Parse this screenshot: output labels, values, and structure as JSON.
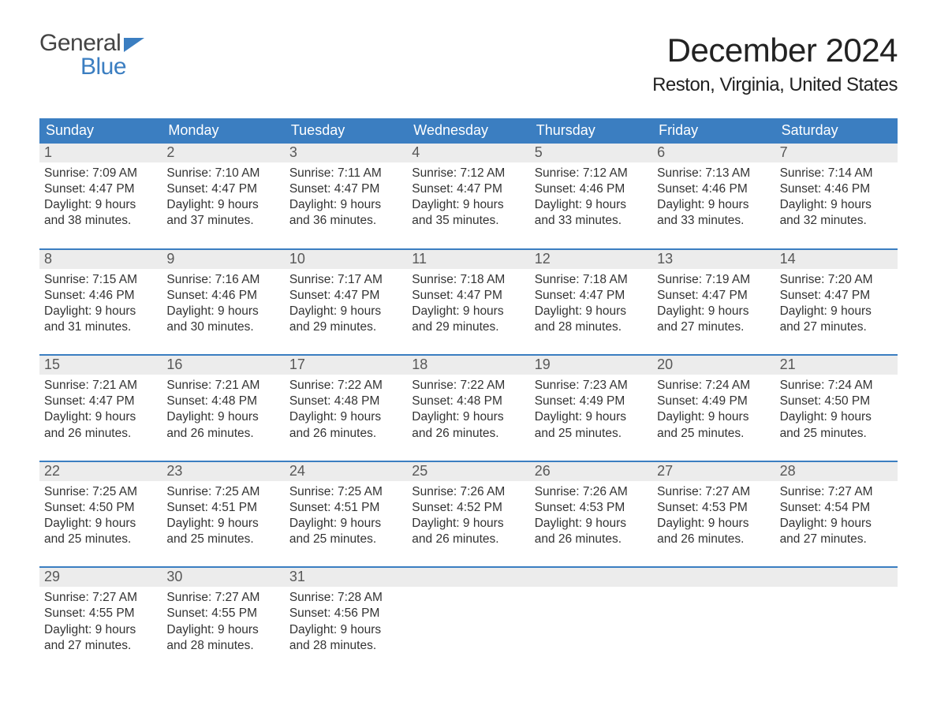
{
  "brand": {
    "word1": "General",
    "word2": "Blue"
  },
  "title": "December 2024",
  "location": "Reston, Virginia, United States",
  "colors": {
    "accent": "#3b7ec1",
    "date_bg": "#ececec",
    "background": "#ffffff",
    "text": "#333333"
  },
  "weekdays": [
    "Sunday",
    "Monday",
    "Tuesday",
    "Wednesday",
    "Thursday",
    "Friday",
    "Saturday"
  ],
  "weeks": [
    [
      {
        "date": "1",
        "sunrise": "Sunrise: 7:09 AM",
        "sunset": "Sunset: 4:47 PM",
        "daylight1": "Daylight: 9 hours",
        "daylight2": "and 38 minutes."
      },
      {
        "date": "2",
        "sunrise": "Sunrise: 7:10 AM",
        "sunset": "Sunset: 4:47 PM",
        "daylight1": "Daylight: 9 hours",
        "daylight2": "and 37 minutes."
      },
      {
        "date": "3",
        "sunrise": "Sunrise: 7:11 AM",
        "sunset": "Sunset: 4:47 PM",
        "daylight1": "Daylight: 9 hours",
        "daylight2": "and 36 minutes."
      },
      {
        "date": "4",
        "sunrise": "Sunrise: 7:12 AM",
        "sunset": "Sunset: 4:47 PM",
        "daylight1": "Daylight: 9 hours",
        "daylight2": "and 35 minutes."
      },
      {
        "date": "5",
        "sunrise": "Sunrise: 7:12 AM",
        "sunset": "Sunset: 4:46 PM",
        "daylight1": "Daylight: 9 hours",
        "daylight2": "and 33 minutes."
      },
      {
        "date": "6",
        "sunrise": "Sunrise: 7:13 AM",
        "sunset": "Sunset: 4:46 PM",
        "daylight1": "Daylight: 9 hours",
        "daylight2": "and 33 minutes."
      },
      {
        "date": "7",
        "sunrise": "Sunrise: 7:14 AM",
        "sunset": "Sunset: 4:46 PM",
        "daylight1": "Daylight: 9 hours",
        "daylight2": "and 32 minutes."
      }
    ],
    [
      {
        "date": "8",
        "sunrise": "Sunrise: 7:15 AM",
        "sunset": "Sunset: 4:46 PM",
        "daylight1": "Daylight: 9 hours",
        "daylight2": "and 31 minutes."
      },
      {
        "date": "9",
        "sunrise": "Sunrise: 7:16 AM",
        "sunset": "Sunset: 4:46 PM",
        "daylight1": "Daylight: 9 hours",
        "daylight2": "and 30 minutes."
      },
      {
        "date": "10",
        "sunrise": "Sunrise: 7:17 AM",
        "sunset": "Sunset: 4:47 PM",
        "daylight1": "Daylight: 9 hours",
        "daylight2": "and 29 minutes."
      },
      {
        "date": "11",
        "sunrise": "Sunrise: 7:18 AM",
        "sunset": "Sunset: 4:47 PM",
        "daylight1": "Daylight: 9 hours",
        "daylight2": "and 29 minutes."
      },
      {
        "date": "12",
        "sunrise": "Sunrise: 7:18 AM",
        "sunset": "Sunset: 4:47 PM",
        "daylight1": "Daylight: 9 hours",
        "daylight2": "and 28 minutes."
      },
      {
        "date": "13",
        "sunrise": "Sunrise: 7:19 AM",
        "sunset": "Sunset: 4:47 PM",
        "daylight1": "Daylight: 9 hours",
        "daylight2": "and 27 minutes."
      },
      {
        "date": "14",
        "sunrise": "Sunrise: 7:20 AM",
        "sunset": "Sunset: 4:47 PM",
        "daylight1": "Daylight: 9 hours",
        "daylight2": "and 27 minutes."
      }
    ],
    [
      {
        "date": "15",
        "sunrise": "Sunrise: 7:21 AM",
        "sunset": "Sunset: 4:47 PM",
        "daylight1": "Daylight: 9 hours",
        "daylight2": "and 26 minutes."
      },
      {
        "date": "16",
        "sunrise": "Sunrise: 7:21 AM",
        "sunset": "Sunset: 4:48 PM",
        "daylight1": "Daylight: 9 hours",
        "daylight2": "and 26 minutes."
      },
      {
        "date": "17",
        "sunrise": "Sunrise: 7:22 AM",
        "sunset": "Sunset: 4:48 PM",
        "daylight1": "Daylight: 9 hours",
        "daylight2": "and 26 minutes."
      },
      {
        "date": "18",
        "sunrise": "Sunrise: 7:22 AM",
        "sunset": "Sunset: 4:48 PM",
        "daylight1": "Daylight: 9 hours",
        "daylight2": "and 26 minutes."
      },
      {
        "date": "19",
        "sunrise": "Sunrise: 7:23 AM",
        "sunset": "Sunset: 4:49 PM",
        "daylight1": "Daylight: 9 hours",
        "daylight2": "and 25 minutes."
      },
      {
        "date": "20",
        "sunrise": "Sunrise: 7:24 AM",
        "sunset": "Sunset: 4:49 PM",
        "daylight1": "Daylight: 9 hours",
        "daylight2": "and 25 minutes."
      },
      {
        "date": "21",
        "sunrise": "Sunrise: 7:24 AM",
        "sunset": "Sunset: 4:50 PM",
        "daylight1": "Daylight: 9 hours",
        "daylight2": "and 25 minutes."
      }
    ],
    [
      {
        "date": "22",
        "sunrise": "Sunrise: 7:25 AM",
        "sunset": "Sunset: 4:50 PM",
        "daylight1": "Daylight: 9 hours",
        "daylight2": "and 25 minutes."
      },
      {
        "date": "23",
        "sunrise": "Sunrise: 7:25 AM",
        "sunset": "Sunset: 4:51 PM",
        "daylight1": "Daylight: 9 hours",
        "daylight2": "and 25 minutes."
      },
      {
        "date": "24",
        "sunrise": "Sunrise: 7:25 AM",
        "sunset": "Sunset: 4:51 PM",
        "daylight1": "Daylight: 9 hours",
        "daylight2": "and 25 minutes."
      },
      {
        "date": "25",
        "sunrise": "Sunrise: 7:26 AM",
        "sunset": "Sunset: 4:52 PM",
        "daylight1": "Daylight: 9 hours",
        "daylight2": "and 26 minutes."
      },
      {
        "date": "26",
        "sunrise": "Sunrise: 7:26 AM",
        "sunset": "Sunset: 4:53 PM",
        "daylight1": "Daylight: 9 hours",
        "daylight2": "and 26 minutes."
      },
      {
        "date": "27",
        "sunrise": "Sunrise: 7:27 AM",
        "sunset": "Sunset: 4:53 PM",
        "daylight1": "Daylight: 9 hours",
        "daylight2": "and 26 minutes."
      },
      {
        "date": "28",
        "sunrise": "Sunrise: 7:27 AM",
        "sunset": "Sunset: 4:54 PM",
        "daylight1": "Daylight: 9 hours",
        "daylight2": "and 27 minutes."
      }
    ],
    [
      {
        "date": "29",
        "sunrise": "Sunrise: 7:27 AM",
        "sunset": "Sunset: 4:55 PM",
        "daylight1": "Daylight: 9 hours",
        "daylight2": "and 27 minutes."
      },
      {
        "date": "30",
        "sunrise": "Sunrise: 7:27 AM",
        "sunset": "Sunset: 4:55 PM",
        "daylight1": "Daylight: 9 hours",
        "daylight2": "and 28 minutes."
      },
      {
        "date": "31",
        "sunrise": "Sunrise: 7:28 AM",
        "sunset": "Sunset: 4:56 PM",
        "daylight1": "Daylight: 9 hours",
        "daylight2": "and 28 minutes."
      },
      null,
      null,
      null,
      null
    ]
  ],
  "table_style": {
    "type": "calendar-table",
    "columns": 7,
    "rows": 5,
    "header_bg": "#3b7ec1",
    "header_text_color": "#ffffff",
    "date_bar_bg": "#ececec",
    "week_separator_color": "#3b7ec1",
    "body_fontsize": 15.5,
    "header_fontsize": 18,
    "title_fontsize": 42,
    "location_fontsize": 24
  }
}
